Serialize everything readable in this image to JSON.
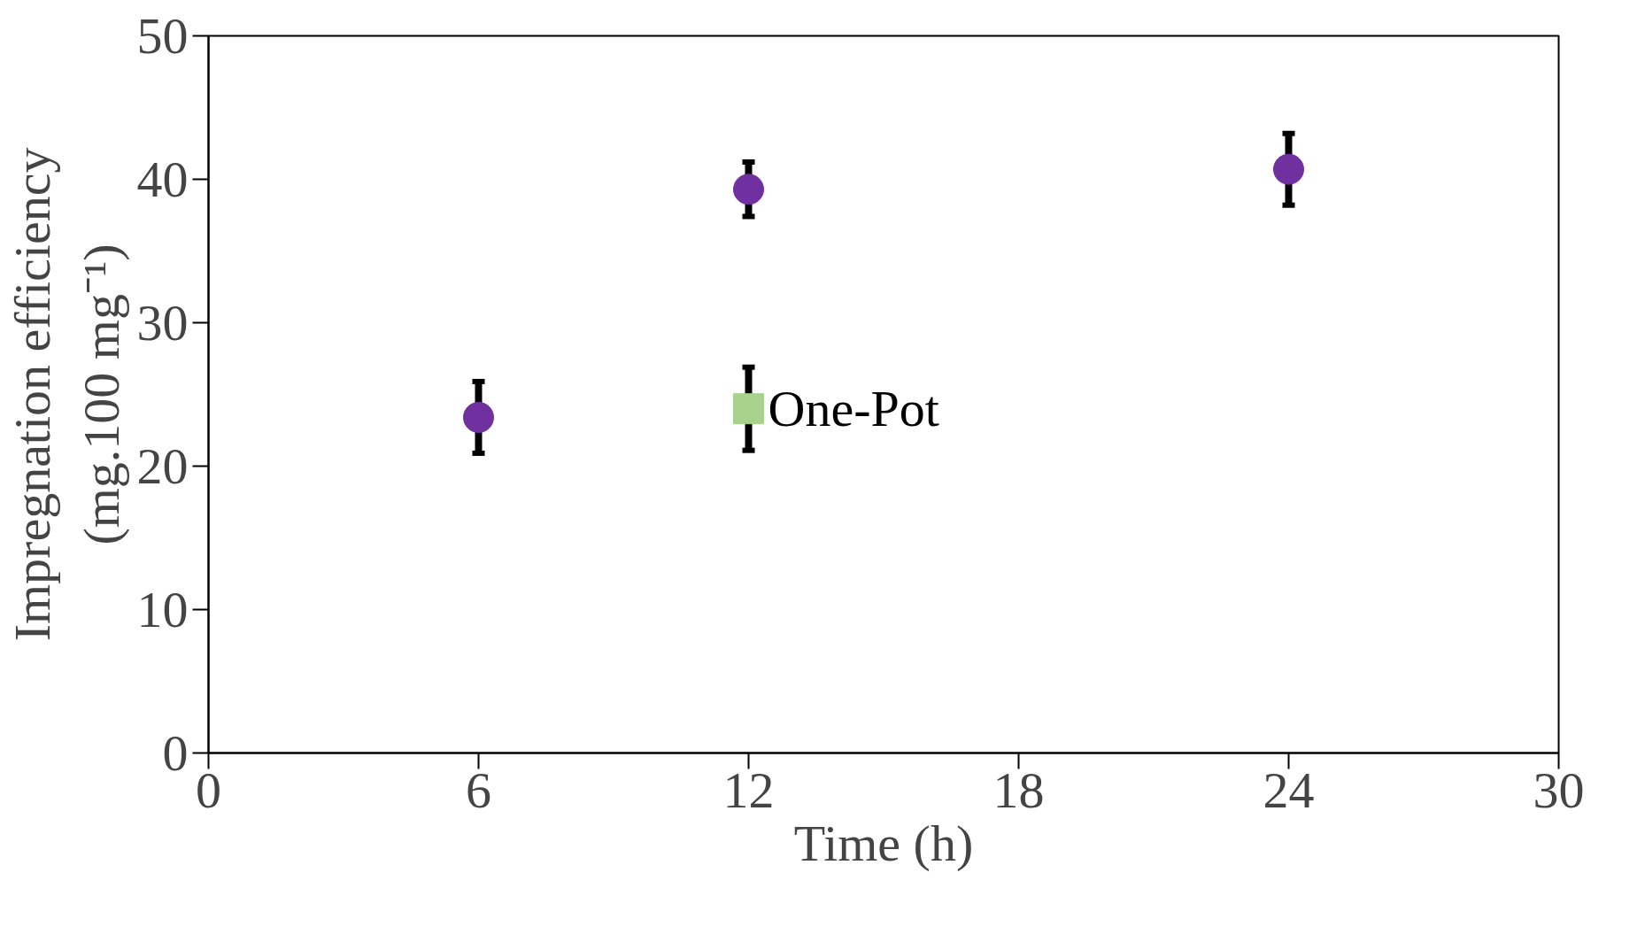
{
  "chart_data": {
    "type": "scatter",
    "xlabel": "Time (h)",
    "ylabel": "Impregnation efficiency\n(mg.100 mg⁻¹)",
    "xlim": [
      0,
      30
    ],
    "xticks": [
      0,
      6,
      12,
      18,
      24,
      30
    ],
    "ylim": [
      0,
      50
    ],
    "yticks": [
      0,
      10,
      20,
      30,
      40,
      50
    ],
    "grid": false,
    "legend": false,
    "marker": "circle",
    "series": [
      {
        "color": "#7030a0",
        "x": [
          6,
          12,
          24
        ],
        "values": [
          23.4,
          39.3,
          40.7
        ],
        "errors": [
          2.5,
          1.9,
          2.5
        ]
      },
      {
        "name": "One-Pot",
        "color": "#a9d18e",
        "marker": "square",
        "x": [
          12
        ],
        "values": [
          24.0
        ],
        "errors": [
          2.9
        ]
      }
    ]
  }
}
